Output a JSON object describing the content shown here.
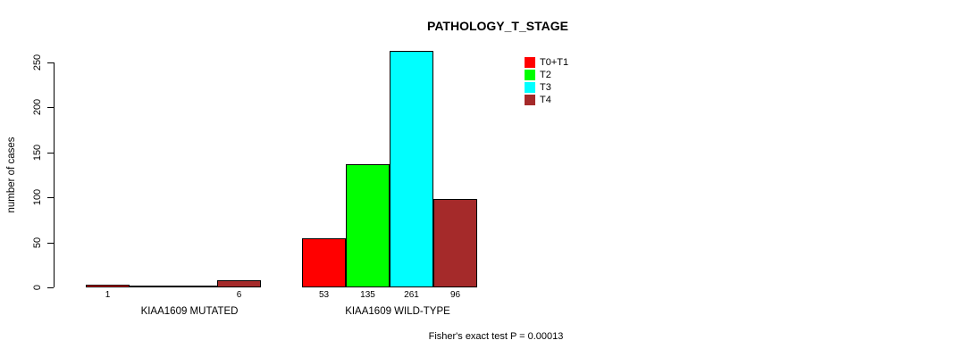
{
  "title": "PATHOLOGY_T_STAGE",
  "footnote": "Fisher's exact test P = 0.00013",
  "chart_data": {
    "type": "bar",
    "grouped": true,
    "title": "PATHOLOGY_T_STAGE",
    "categories": [
      "KIAA1609 MUTATED",
      "KIAA1609 WILD-TYPE"
    ],
    "series": [
      {
        "name": "T0+T1",
        "color": "#FF0000",
        "values": [
          1,
          53
        ]
      },
      {
        "name": "T2",
        "color": "#00FF00",
        "values": [
          0,
          135
        ]
      },
      {
        "name": "T3",
        "color": "#00FFFF",
        "values": [
          0,
          261
        ]
      },
      {
        "name": "T4",
        "color": "#A52A2A",
        "values": [
          6,
          96
        ]
      }
    ],
    "ylabel": "number of cases",
    "xlabel": "",
    "yticks": [
      0,
      50,
      100,
      150,
      200,
      250
    ],
    "ylim": [
      0,
      250
    ],
    "bar_value_labels_shown_for_nonzero": true,
    "legend_position": "top-right",
    "grid": false,
    "bar_border_color": "#000000",
    "background_color": "#FFFFFF",
    "text_color": "#000000",
    "annotation": "Fisher's exact test P = 0.00013"
  }
}
